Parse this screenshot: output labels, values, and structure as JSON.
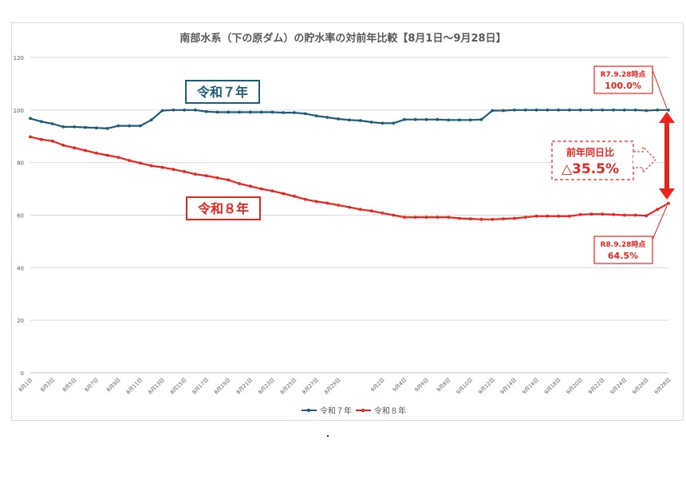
{
  "chart_data": {
    "type": "line",
    "title": "南部水系（下の原ダム）の貯水率の対前年比較【8月1日～9月28日】",
    "ylim": [
      0,
      120
    ],
    "yticks": [
      0,
      20,
      40,
      60,
      80,
      100,
      120
    ],
    "x": [
      "8月1日",
      "8月2日",
      "8月3日",
      "8月4日",
      "8月5日",
      "8月6日",
      "8月7日",
      "8月8日",
      "8月9日",
      "8月10日",
      "8月11日",
      "8月12日",
      "8月13日",
      "8月14日",
      "8月15日",
      "8月16日",
      "8月17日",
      "8月18日",
      "8月19日",
      "8月20日",
      "8月21日",
      "8月22日",
      "8月23日",
      "8月24日",
      "8月25日",
      "8月26日",
      "8月27日",
      "8月28日",
      "8月29日",
      "8月30日",
      "8月31日",
      "9月1日",
      "9月2日",
      "9月3日",
      "9月4日",
      "9月5日",
      "9月6日",
      "9月7日",
      "9月8日",
      "9月9日",
      "9月10日",
      "9月11日",
      "9月12日",
      "9月13日",
      "9月14日",
      "9月15日",
      "9月16日",
      "9月17日",
      "9月18日",
      "9月19日",
      "9月20日",
      "9月21日",
      "9月22日",
      "9月23日",
      "9月24日",
      "9月25日",
      "9月26日",
      "9月27日",
      "9月28日"
    ],
    "xtick_labels": [
      "8月1日",
      "8月3日",
      "8月5日",
      "8月7日",
      "8月9日",
      "8月11日",
      "8月13日",
      "8月15日",
      "8月17日",
      "8月19日",
      "8月21日",
      "8月23日",
      "8月25日",
      "8月27日",
      "8月29日",
      "9月2日",
      "9月4日",
      "9月6日",
      "9月8日",
      "9月10日",
      "9月12日",
      "9月14日",
      "9月16日",
      "9月18日",
      "9月20日",
      "9月22日",
      "9月24日",
      "9月26日",
      "9月28日"
    ],
    "series": [
      {
        "name": "令和７年",
        "color": "#1f5c7a",
        "values": [
          96.8,
          95.6,
          94.8,
          93.6,
          93.6,
          93.4,
          93.2,
          93.0,
          94.0,
          94.0,
          94.0,
          96.2,
          99.8,
          100.0,
          100.0,
          100.0,
          99.4,
          99.2,
          99.2,
          99.2,
          99.2,
          99.2,
          99.2,
          99.0,
          99.0,
          98.6,
          97.8,
          97.2,
          96.6,
          96.2,
          96.0,
          95.4,
          95.0,
          95.0,
          96.4,
          96.4,
          96.4,
          96.4,
          96.2,
          96.2,
          96.2,
          96.4,
          99.8,
          99.8,
          100.0,
          100.0,
          100.0,
          100.0,
          100.0,
          100.0,
          100.0,
          100.0,
          100.0,
          100.0,
          100.0,
          100.0,
          99.8,
          100.0,
          100.0
        ]
      },
      {
        "name": "令和８年",
        "color": "#e8241d",
        "values": [
          89.8,
          88.8,
          88.2,
          86.6,
          85.6,
          84.6,
          83.6,
          82.8,
          82.0,
          80.8,
          79.8,
          78.8,
          78.2,
          77.4,
          76.6,
          75.6,
          75.0,
          74.2,
          73.4,
          72.0,
          71.0,
          70.0,
          69.2,
          68.2,
          67.2,
          66.0,
          65.2,
          64.6,
          63.8,
          63.0,
          62.2,
          61.6,
          60.8,
          60.0,
          59.2,
          59.2,
          59.2,
          59.2,
          59.2,
          58.8,
          58.6,
          58.4,
          58.4,
          58.6,
          58.8,
          59.2,
          59.6,
          59.6,
          59.6,
          59.6,
          60.2,
          60.4,
          60.4,
          60.2,
          60.0,
          60.0,
          59.8,
          62.2,
          64.5
        ]
      }
    ],
    "labels": {
      "r7_series": "令和７年",
      "r8_series": "令和８年"
    },
    "callouts": {
      "r7_date": "R7.9.28時点",
      "r7_value": "100.0%",
      "r8_date": "R8.9.28時点",
      "r8_value": "64.5%",
      "diff_title": "前年同日比",
      "diff_value": "△35.5%"
    },
    "legend": {
      "position": "bottom",
      "items": [
        "令和７年",
        "令和８年"
      ]
    },
    "grid": true
  },
  "colors": {
    "r7": "#1f5c7a",
    "r8": "#e8241d",
    "grid": "#d9d9d9",
    "axis": "#595959"
  }
}
